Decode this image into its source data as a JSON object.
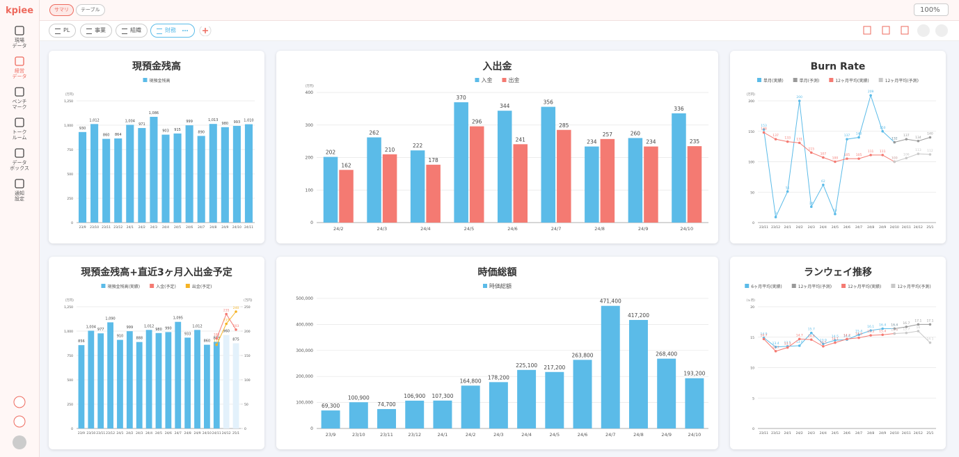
{
  "nav": {
    "logo": "kpiee",
    "items": [
      {
        "lines": [
          "現場",
          "データ"
        ]
      },
      {
        "lines": [
          "経営",
          "データ"
        ]
      },
      {
        "lines": [
          "ベンチ",
          "マーク"
        ]
      },
      {
        "lines": [
          "トーク",
          "ルーム"
        ]
      },
      {
        "lines": [
          "データ",
          "ボックス"
        ]
      },
      {
        "lines": [
          "通知",
          "設定"
        ]
      }
    ]
  },
  "tabs": [
    "サマリ",
    "テーブル"
  ],
  "zoom": "100%",
  "sheets": [
    "PL",
    "事業",
    "組織",
    "財務"
  ],
  "chart_data": [
    {
      "type": "bar",
      "title": "現預金残高",
      "y_label": "(万円)",
      "categories": [
        "23/9",
        "23/10",
        "23/11",
        "23/12",
        "24/1",
        "24/2",
        "24/3",
        "24/4",
        "24/5",
        "24/6",
        "24/7",
        "24/8",
        "24/9",
        "24/10",
        "24/11"
      ],
      "series": [
        {
          "name": "現預金残高",
          "color": "#5bbbe8",
          "values": [
            930,
            1012,
            860,
            864,
            1004,
            971,
            1086,
            903,
            915,
            999,
            890,
            1013,
            980,
            993,
            1010
          ],
          "value_labels": [
            "930",
            "1,012",
            "860",
            "864",
            "1,004",
            "971",
            "1,086",
            "903",
            "915",
            "999",
            "890",
            "1,013",
            "980",
            "993",
            "1,010"
          ]
        }
      ],
      "ylim": [
        0,
        1250
      ],
      "yticks": [
        0,
        250,
        500,
        750,
        {
          "value": 1000,
          "label": "1,000"
        },
        {
          "value": 1250,
          "label": "1,250"
        }
      ],
      "grid": true,
      "data_labels": true
    },
    {
      "type": "bar",
      "title": "入出金",
      "y_label": "(万円)",
      "categories": [
        "24/2",
        "24/3",
        "24/4",
        "24/5",
        "24/6",
        "24/7",
        "24/8",
        "24/9",
        "24/10"
      ],
      "series": [
        {
          "name": "入金",
          "color": "#5bbbe8",
          "values": [
            202,
            262,
            222,
            370,
            344,
            356,
            234,
            260,
            336
          ]
        },
        {
          "name": "出金",
          "color": "#f47a72",
          "values": [
            162,
            210,
            178,
            296,
            241,
            285,
            257,
            234,
            235
          ]
        }
      ],
      "ylim": [
        0,
        400
      ],
      "yticks": [
        0,
        100,
        200,
        300,
        400
      ],
      "grid": true,
      "data_labels": true
    },
    {
      "type": "line",
      "title": "Burn Rate",
      "y_label": "(万円)",
      "categories": [
        "23/11",
        "23/12",
        "24/1",
        "24/2",
        "24/3",
        "24/4",
        "24/5",
        "24/6",
        "24/7",
        "24/8",
        "24/9",
        "24/10",
        "24/11",
        "24/12",
        "25/1"
      ],
      "series": [
        {
          "name": "単月(実績)",
          "color": "#5bbbe8",
          "values": [
            153,
            9,
            51,
            200,
            26,
            62,
            14,
            137,
            140,
            209,
            150,
            132,
            null,
            null,
            null
          ]
        },
        {
          "name": "単月(予測)",
          "color": "#999999",
          "values": [
            null,
            null,
            null,
            null,
            null,
            null,
            null,
            null,
            null,
            null,
            null,
            132,
            137,
            134,
            140
          ]
        },
        {
          "name": "12ヶ月平均(実績)",
          "color": "#f47a72",
          "values": [
            148,
            137,
            133,
            131,
            115,
            107,
            100,
            105,
            105,
            111,
            111,
            100,
            null,
            null,
            null
          ]
        },
        {
          "name": "12ヶ月平均(予測)",
          "color": "#c8c8c8",
          "values": [
            null,
            null,
            null,
            null,
            null,
            null,
            null,
            null,
            null,
            null,
            null,
            100,
            106,
            113,
            112
          ]
        }
      ],
      "ylim": [
        0,
        200
      ],
      "yticks": [
        0,
        50,
        100,
        150,
        200
      ],
      "grid": true,
      "data_labels": true
    },
    {
      "type": "bar",
      "title": "現預金残高+直近3ヶ月入出金予定",
      "y_label": "(万円)",
      "y2_label": "(万円)",
      "stacked": true,
      "categories": [
        "23/9",
        "23/10",
        "23/11",
        "23/12",
        "24/1",
        "24/2",
        "24/3",
        "24/4",
        "24/5",
        "24/6",
        "24/7",
        "24/8",
        "24/9",
        "24/10",
        "24/11",
        "24/12",
        "25/1"
      ],
      "series": [
        {
          "name": "現預金残高(実績)",
          "color": "#5bbbe8",
          "values": [
            856,
            1004,
            977,
            1090,
            910,
            999,
            888,
            1012,
            980,
            990,
            1095,
            933,
            1012,
            860,
            889,
            null,
            null
          ],
          "value_labels": [
            "856",
            "1,004",
            "977",
            "1,090",
            "910",
            "999",
            "888",
            "1,012",
            "980",
            "990",
            "1,095",
            "933",
            "1,012",
            "860",
            "889",
            null,
            null
          ]
        },
        {
          "color": "#e3f1fb",
          "values": [
            null,
            null,
            null,
            null,
            null,
            null,
            null,
            null,
            null,
            null,
            null,
            null,
            null,
            null,
            null,
            960,
            875
          ]
        },
        {
          "name": "入金(予定)",
          "color": "#f47a72",
          "type": "line",
          "axis": "y2",
          "values": [
            null,
            null,
            null,
            null,
            null,
            null,
            null,
            null,
            null,
            null,
            null,
            null,
            null,
            null,
            185,
            235,
            203
          ]
        },
        {
          "name": "出金(予定)",
          "color": "#f5b324",
          "type": "line",
          "axis": "y2",
          "values": [
            null,
            null,
            null,
            null,
            null,
            null,
            null,
            null,
            null,
            null,
            null,
            null,
            null,
            null,
            172,
            215,
            240
          ]
        }
      ],
      "ylim": [
        0,
        1250
      ],
      "yticks": [
        0,
        250,
        500,
        750,
        {
          "value": 1000,
          "label": "1,000"
        },
        {
          "value": 1250,
          "label": "1,250"
        }
      ],
      "y2lim": [
        0,
        250
      ],
      "y2ticks": [
        0,
        50,
        100,
        150,
        200,
        250
      ],
      "grid": true,
      "data_labels": true
    },
    {
      "type": "bar",
      "title": "時価総額",
      "categories": [
        "23/9",
        "23/10",
        "23/11",
        "23/12",
        "24/1",
        "24/2",
        "24/3",
        "24/4",
        "24/5",
        "24/6",
        "24/7",
        "24/8",
        "24/9",
        "24/10"
      ],
      "series": [
        {
          "name": "時価総額",
          "color": "#5bbbe8",
          "values": [
            69300,
            100900,
            74700,
            106900,
            107300,
            164800,
            178200,
            225100,
            217200,
            263800,
            471400,
            417200,
            268400,
            193200
          ],
          "value_labels": [
            "69,300",
            "100,900",
            "74,700",
            "106,900",
            "107,300",
            "164,800",
            "178,200",
            "225,100",
            "217,200",
            "263,800",
            "471,400",
            "417,200",
            "268,400",
            "193,200"
          ]
        }
      ],
      "ylim": [
        0,
        500000
      ],
      "yticks": [
        0,
        {
          "value": 100000,
          "label": "100,000"
        },
        {
          "value": 200000,
          "label": "200,000"
        },
        {
          "value": 300000,
          "label": "300,000"
        },
        {
          "value": 400000,
          "label": "400,000"
        },
        {
          "value": 500000,
          "label": "500,000"
        }
      ],
      "grid": true,
      "data_labels": true
    },
    {
      "type": "line",
      "title": "ランウェイ推移",
      "y_label": "(ヶ月)",
      "categories": [
        "23/11",
        "23/12",
        "24/1",
        "24/2",
        "24/3",
        "24/4",
        "24/5",
        "24/6",
        "24/7",
        "24/8",
        "24/9",
        "24/10",
        "24/11",
        "24/12",
        "25/1"
      ],
      "series": [
        {
          "name": "6ヶ月平均(実績)",
          "color": "#5bbbe8",
          "values": [
            14.9,
            13.4,
            13.5,
            13.6,
            15.7,
            13.9,
            14.5,
            14.6,
            15.4,
            16.1,
            16.4,
            16.4,
            null,
            null,
            null
          ]
        },
        {
          "name": "12ヶ月平均(予測)",
          "color": "#999999",
          "values": [
            null,
            null,
            null,
            null,
            null,
            null,
            null,
            null,
            null,
            null,
            null,
            16.4,
            16.7,
            17.1,
            17.1
          ]
        },
        {
          "name": "12ヶ月平均(実績)",
          "color": "#f47a72",
          "values": [
            14.7,
            12.7,
            13.3,
            14.7,
            14.6,
            13.5,
            14.1,
            14.7,
            14.9,
            15.3,
            15.4,
            15.6,
            null,
            null,
            null
          ]
        },
        {
          "name": "12ヶ月平均(予測)",
          "color": "#c8c8c8",
          "values": [
            null,
            null,
            null,
            null,
            null,
            null,
            null,
            null,
            null,
            null,
            null,
            15.6,
            15.7,
            16.0,
            14.1
          ]
        }
      ],
      "ylim": [
        0,
        20
      ],
      "yticks": [
        0,
        5,
        10,
        15,
        20
      ],
      "grid": true,
      "data_labels": true
    }
  ]
}
